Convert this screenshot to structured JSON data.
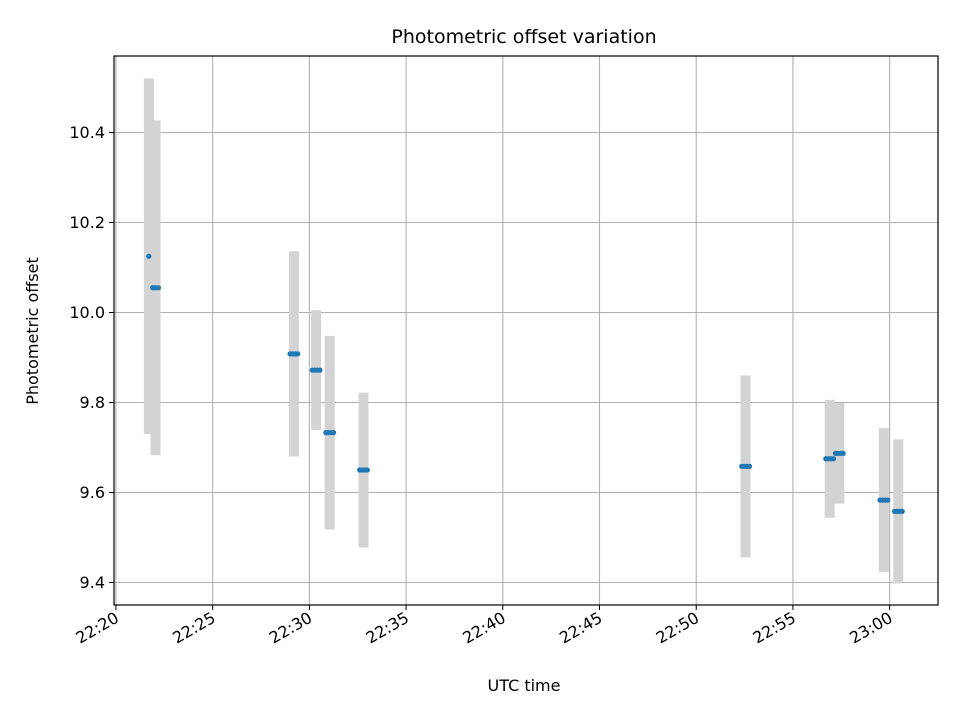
{
  "chart_data": {
    "type": "scatter",
    "title": "Photometric offset variation",
    "xlabel": "UTC time",
    "ylabel": "Photometric offset",
    "x_tick_labels": [
      "22:20",
      "22:25",
      "22:30",
      "22:35",
      "22:40",
      "22:45",
      "22:50",
      "22:55",
      "23:00"
    ],
    "y_tick_labels": [
      "9.4",
      "9.6",
      "9.8",
      "10.0",
      "10.2",
      "10.4"
    ],
    "x_ticks_minutes_after_2220": [
      0,
      5,
      10,
      15,
      20,
      25,
      30,
      35,
      40
    ],
    "y_ticks": [
      9.4,
      9.6,
      9.8,
      10.0,
      10.2,
      10.4
    ],
    "xlim_minutes_after_2220": [
      -0.1,
      42.5
    ],
    "ylim": [
      9.35,
      10.57
    ],
    "grid": true,
    "series": [
      {
        "points": [
          {
            "t": 1.7,
            "t_start": 1.7,
            "t_end": 1.7,
            "y": 10.125,
            "err": 0.395
          },
          {
            "t": 2.05,
            "t_start": 1.9,
            "t_end": 2.2,
            "y": 10.055,
            "err": 0.372
          },
          {
            "t": 9.2,
            "t_start": 9.0,
            "t_end": 9.4,
            "y": 9.908,
            "err": 0.228
          },
          {
            "t": 10.35,
            "t_start": 10.15,
            "t_end": 10.55,
            "y": 9.872,
            "err": 0.133
          },
          {
            "t": 11.05,
            "t_start": 10.85,
            "t_end": 11.25,
            "y": 9.733,
            "err": 0.215
          },
          {
            "t": 12.8,
            "t_start": 12.6,
            "t_end": 13.0,
            "y": 9.65,
            "err": 0.172
          },
          {
            "t": 32.55,
            "t_start": 32.35,
            "t_end": 32.75,
            "y": 9.658,
            "err": 0.202
          },
          {
            "t": 36.9,
            "t_start": 36.7,
            "t_end": 37.1,
            "y": 9.675,
            "err": 0.131
          },
          {
            "t": 37.4,
            "t_start": 37.2,
            "t_end": 37.6,
            "y": 9.687,
            "err": 0.112
          },
          {
            "t": 39.7,
            "t_start": 39.5,
            "t_end": 39.9,
            "y": 9.583,
            "err": 0.16
          },
          {
            "t": 40.45,
            "t_start": 40.25,
            "t_end": 40.65,
            "y": 9.558,
            "err": 0.16
          }
        ]
      }
    ],
    "colors": {
      "points": "#1f77b4",
      "error_bars": "#d3d3d3",
      "grid": "#b0b0b0",
      "axes": "#000000"
    }
  }
}
